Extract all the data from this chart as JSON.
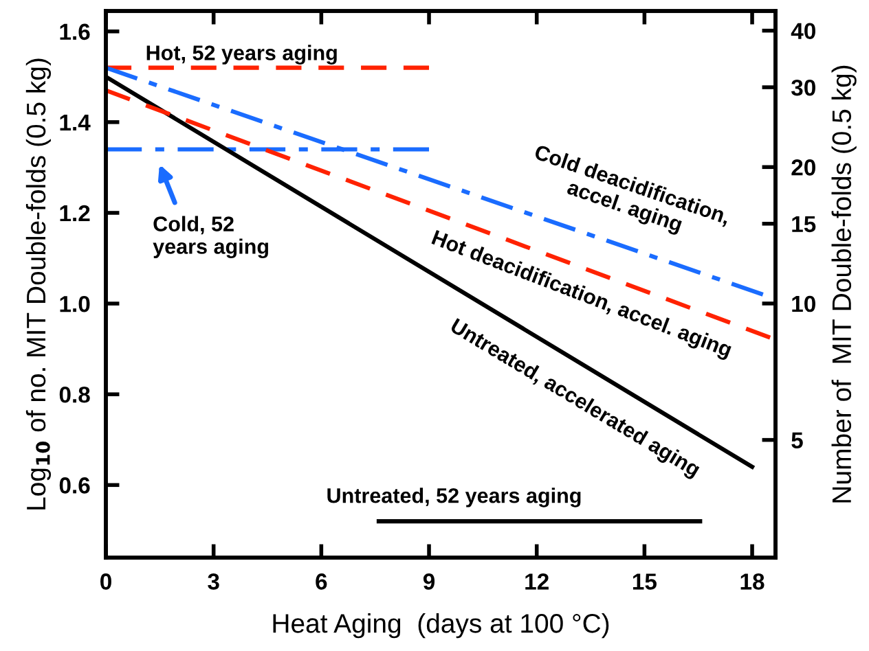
{
  "chart_data": {
    "type": "line",
    "xlabel": "Heat Aging  (days at 100 °C)",
    "ylabel": "Log$_{10}$ of no. MIT Double-folds (0.5 kg)",
    "y2label": "Number of  MIT Double-folds (0.5 kg)",
    "xlim": [
      0,
      18.65
    ],
    "xticks": [
      0,
      3,
      6,
      9,
      12,
      15,
      18
    ],
    "ylim": [
      0.44,
      1.645
    ],
    "yticks": [
      0.6,
      0.8,
      {
        "value": 1.0,
        "label": "1.0"
      },
      1.2,
      1.4,
      1.6
    ],
    "y2lim": [
      2.75,
      44.2
    ],
    "y2ticks": [
      5,
      10,
      15,
      20,
      30,
      40
    ],
    "log": "y2",
    "grid": false,
    "legend": false,
    "marker": "none",
    "series": [
      {
        "color": "#ff2200",
        "line_style": "dashed",
        "x": [
          0,
          9
        ],
        "values": [
          1.52,
          1.52
        ]
      },
      {
        "color": "#1a6cff",
        "line_style": "dashdot",
        "x": [
          0,
          9
        ],
        "values": [
          1.34,
          1.34
        ]
      },
      {
        "color": "#000000",
        "line_style": "solid",
        "x": [
          7.6,
          16.55
        ],
        "values": [
          0.52,
          0.52
        ]
      },
      {
        "color": "#000000",
        "line_style": "solid",
        "x": [
          0,
          18
        ],
        "values": [
          1.5,
          0.64
        ]
      },
      {
        "color": "#ff2200",
        "line_style": "dashed",
        "x": [
          0,
          18.5
        ],
        "values": [
          1.47,
          0.925
        ]
      },
      {
        "color": "#1a6cff",
        "line_style": "dashdot",
        "x": [
          0,
          18.3
        ],
        "values": [
          1.52,
          1.02
        ]
      }
    ],
    "annotations": [
      "Hot, 52 years aging",
      "Cold, 52\nyears aging",
      "Untreated, 52 years aging",
      "Untreated, accelerated aging",
      "Hot deacidification, accel. aging",
      "Cold deacidification,\naccel. aging"
    ]
  }
}
